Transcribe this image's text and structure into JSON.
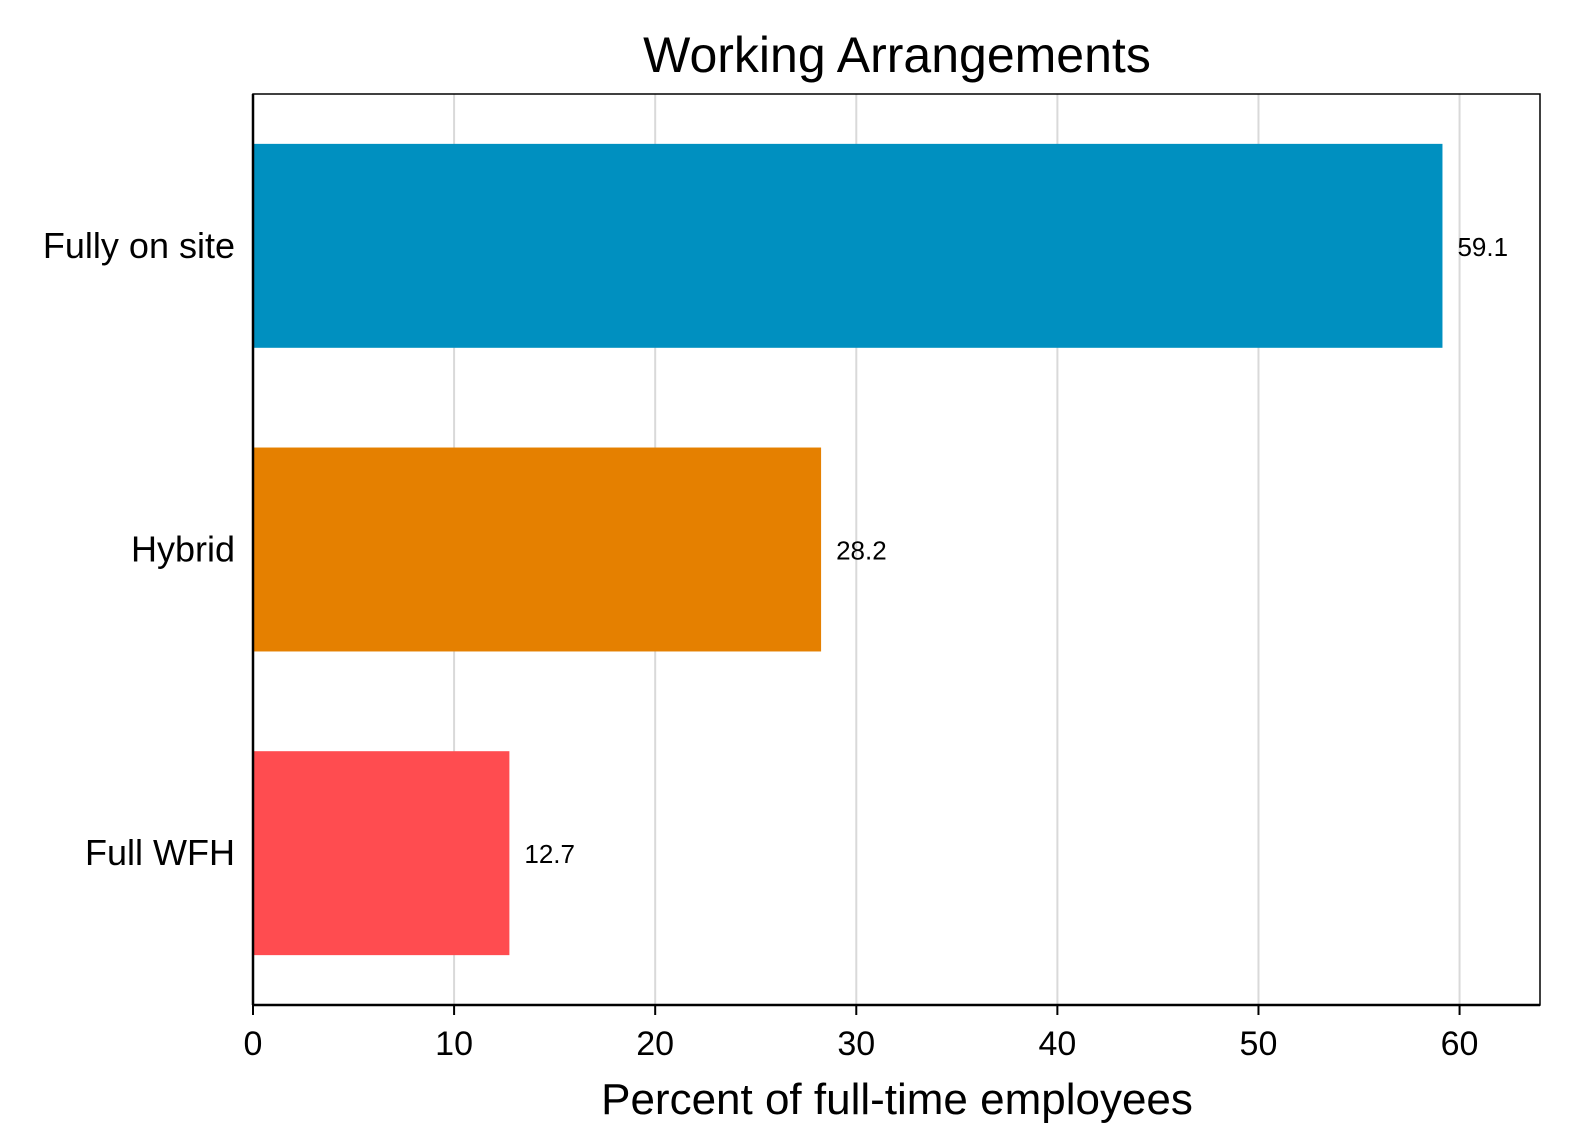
{
  "chart_data": {
    "type": "bar",
    "orientation": "horizontal",
    "title": "Working Arrangements",
    "xlabel": "Percent of full-time employees",
    "ylabel": "",
    "categories": [
      "Fully on site",
      "Hybrid",
      "Full WFH"
    ],
    "values": [
      59.1,
      28.2,
      12.7
    ],
    "value_labels": [
      "59.1",
      "28.2",
      "12.7"
    ],
    "colors": [
      "#0090C0",
      "#E58000",
      "#FF4C50"
    ],
    "xlim": [
      0,
      64
    ],
    "xticks": [
      0,
      10,
      20,
      30,
      40,
      50,
      60
    ],
    "xtick_labels": [
      "0",
      "10",
      "20",
      "30",
      "40",
      "50",
      "60"
    ],
    "grid": "vertical",
    "legend": "none"
  }
}
